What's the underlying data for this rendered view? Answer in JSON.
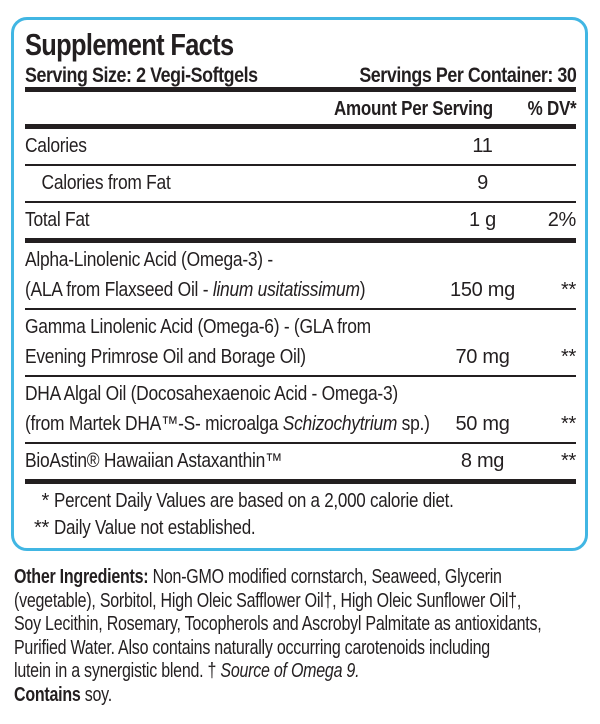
{
  "colors": {
    "border_blue": "#41b6e3",
    "text_ink": "#231f20"
  },
  "panel": {
    "title": "Supplement Facts",
    "serving_size_label": "Serving Size: 2 Vegi-Softgels",
    "servings_per_container_label": "Servings Per Container: 30",
    "amount_header": "Amount Per Serving",
    "dv_header": "% DV*",
    "rows": [
      {
        "lines": [
          [
            {
              "t": "Calories"
            }
          ]
        ],
        "amount": "11",
        "dv": "",
        "sep": "thin",
        "indent": false
      },
      {
        "lines": [
          [
            {
              "t": "Calories from Fat"
            }
          ]
        ],
        "amount": "9",
        "dv": "",
        "sep": "thin",
        "indent": true
      },
      {
        "lines": [
          [
            {
              "t": "Total Fat"
            }
          ]
        ],
        "amount": "1 g",
        "dv": "2%",
        "sep": "thick",
        "indent": false
      },
      {
        "lines": [
          [
            {
              "t": "Alpha-Linolenic Acid (Omega-3) -"
            }
          ],
          [
            {
              "t": "(ALA from Flaxseed Oil - "
            },
            {
              "t": "linum usitatissimum",
              "i": true
            },
            {
              "t": ")"
            }
          ]
        ],
        "amount": "150 mg",
        "dv": "**",
        "sep": "thin",
        "indent": false
      },
      {
        "lines": [
          [
            {
              "t": "Gamma Linolenic Acid (Omega-6) - (GLA from"
            }
          ],
          [
            {
              "t": "Evening Primrose Oil and Borage Oil)"
            }
          ]
        ],
        "amount": "70 mg",
        "dv": "**",
        "sep": "thin",
        "indent": false
      },
      {
        "lines": [
          [
            {
              "t": "DHA Algal Oil (Docosahexaenoic Acid - Omega-3)"
            }
          ],
          [
            {
              "t": "(from Martek DHA™-S- microalga "
            },
            {
              "t": "Schizochytrium",
              "i": true
            },
            {
              "t": " sp.)"
            }
          ]
        ],
        "amount": "50 mg",
        "dv": "**",
        "sep": "thin",
        "indent": false
      },
      {
        "lines": [
          [
            {
              "t": "BioAstin® Hawaiian Astaxanthin™"
            }
          ]
        ],
        "amount": "8 mg",
        "dv": "**",
        "sep": "thick",
        "indent": false
      }
    ],
    "footnotes": [
      {
        "marker": "*",
        "text": "Percent Daily Values are based on a 2,000 calorie diet."
      },
      {
        "marker": "**",
        "text": "Daily Value not established."
      }
    ]
  },
  "other_ingredients": {
    "lines": [
      [
        {
          "t": "Other Ingredients:",
          "b": true
        },
        {
          "t": " Non-GMO modified cornstarch, Seaweed, Glycerin"
        }
      ],
      [
        {
          "t": "(vegetable), Sorbitol, High Oleic Safflower Oil†, High Oleic Sunflower Oil†,"
        }
      ],
      [
        {
          "t": "Soy Lecithin, Rosemary, Tocopherols and Ascrobyl Palmitate as antioxidants,"
        }
      ],
      [
        {
          "t": "Purified Water. Also contains naturally occurring carotenoids including"
        }
      ],
      [
        {
          "t": "lutein in a synergistic blend. † "
        },
        {
          "t": "Source of Omega 9.",
          "i": true
        }
      ],
      [
        {
          "t": "Contains",
          "b": true
        },
        {
          "t": " soy."
        }
      ]
    ]
  }
}
